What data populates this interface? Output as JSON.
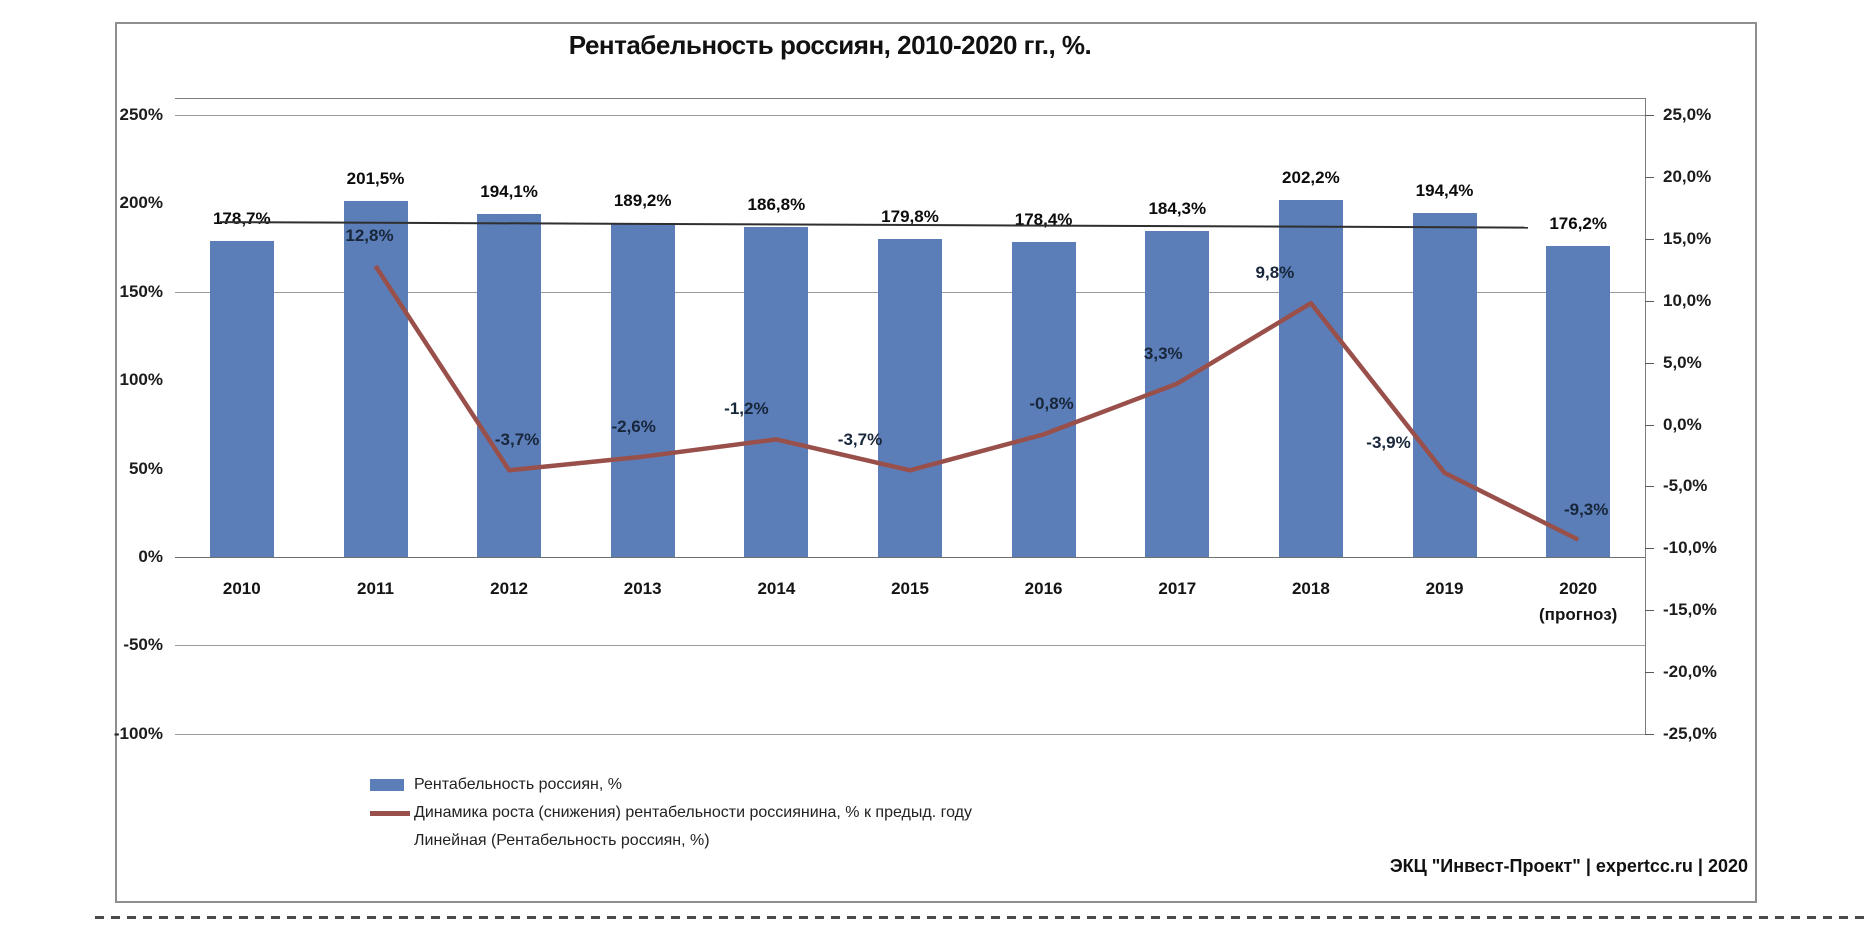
{
  "title": "Рентабельность россиян, 2010-2020 гг., %.",
  "footer": "ЭКЦ \"Инвест-Проект\" | expertcc.ru | 2020",
  "colors": {
    "bar": "#5b7db8",
    "growth_line": "#99504b",
    "trendline": "#2f2f2f",
    "gridline": "#9b9b9b"
  },
  "legend": {
    "items": [
      {
        "label": "Рентабельность россиян, %",
        "swatch": "bar",
        "color": "#5b7db8"
      },
      {
        "label": "Динамика роста (снижения) рентабельности россиянина, % к предыд. году",
        "swatch": "line",
        "color": "#99504b"
      },
      {
        "label": "Линейная (Рентабельность россиян, %)",
        "swatch": "none",
        "color": "#2f2f2f"
      }
    ]
  },
  "chart_data": {
    "type": "bar",
    "title": "Рентабельность россиян, 2010-2020 гг., %.",
    "categories": [
      "2010",
      "2011",
      "2012",
      "2013",
      "2014",
      "2015",
      "2016",
      "2017",
      "2018",
      "2019",
      "2020"
    ],
    "category_sublabels": [
      null,
      null,
      null,
      null,
      null,
      null,
      null,
      null,
      null,
      null,
      "(прогноз)"
    ],
    "series": [
      {
        "name": "Рентабельность россиян, %",
        "type": "bar",
        "axis": "primary",
        "color": "#5b7db8",
        "values": [
          178.7,
          201.5,
          194.1,
          189.2,
          186.8,
          179.8,
          178.4,
          184.3,
          202.2,
          194.4,
          176.2
        ],
        "labels": [
          "178,7%",
          "201,5%",
          "194,1%",
          "189,2%",
          "186,8%",
          "179,8%",
          "178,4%",
          "184,3%",
          "202,2%",
          "194,4%",
          "176,2%"
        ]
      },
      {
        "name": "Динамика роста (снижения) рентабельности россиянина, % к предыд. году",
        "type": "line",
        "axis": "secondary",
        "color": "#99504b",
        "values": [
          null,
          12.8,
          -3.7,
          -2.6,
          -1.2,
          -3.7,
          -0.8,
          3.3,
          9.8,
          -3.9,
          -9.3
        ],
        "labels": [
          null,
          "12,8%",
          "-3,7%",
          "-2,6%",
          "-1,2%",
          "-3,7%",
          "-0,8%",
          "3,3%",
          "9,8%",
          "-3,9%",
          "-9,3%"
        ]
      },
      {
        "name": "Линейная (Рентабельность россиян, %)",
        "type": "trendline",
        "axis": "primary",
        "color": "#2f2f2f",
        "start_value": 189.4,
        "end_value": 186.3
      }
    ],
    "primary_axis": {
      "side": "left",
      "range": [
        -100,
        250
      ],
      "ticks": [
        {
          "label": "250%",
          "value": 250
        },
        {
          "label": "200%",
          "value": 200
        },
        {
          "label": "150%",
          "value": 150
        },
        {
          "label": "100%",
          "value": 100
        },
        {
          "label": "50%",
          "value": 50
        },
        {
          "label": "0%",
          "value": 0
        },
        {
          "label": "-50%",
          "value": -50
        },
        {
          "label": "-100%",
          "value": -100
        }
      ],
      "gridlines": [
        250,
        150,
        0,
        -50,
        -100
      ]
    },
    "secondary_axis": {
      "side": "right",
      "range": [
        -25,
        25
      ],
      "ticks": [
        {
          "label": "25,0%",
          "value": 25
        },
        {
          "label": "20,0%",
          "value": 20
        },
        {
          "label": "15,0%",
          "value": 15
        },
        {
          "label": "10,0%",
          "value": 10
        },
        {
          "label": "5,0%",
          "value": 5
        },
        {
          "label": "0,0%",
          "value": 0
        },
        {
          "label": "-5,0%",
          "value": -5
        },
        {
          "label": "-10,0%",
          "value": -10
        },
        {
          "label": "-15,0%",
          "value": -15
        },
        {
          "label": "-20,0%",
          "value": -20
        },
        {
          "label": "-25,0%",
          "value": -25
        }
      ]
    },
    "legend_position": "bottom-left",
    "grid": true
  }
}
